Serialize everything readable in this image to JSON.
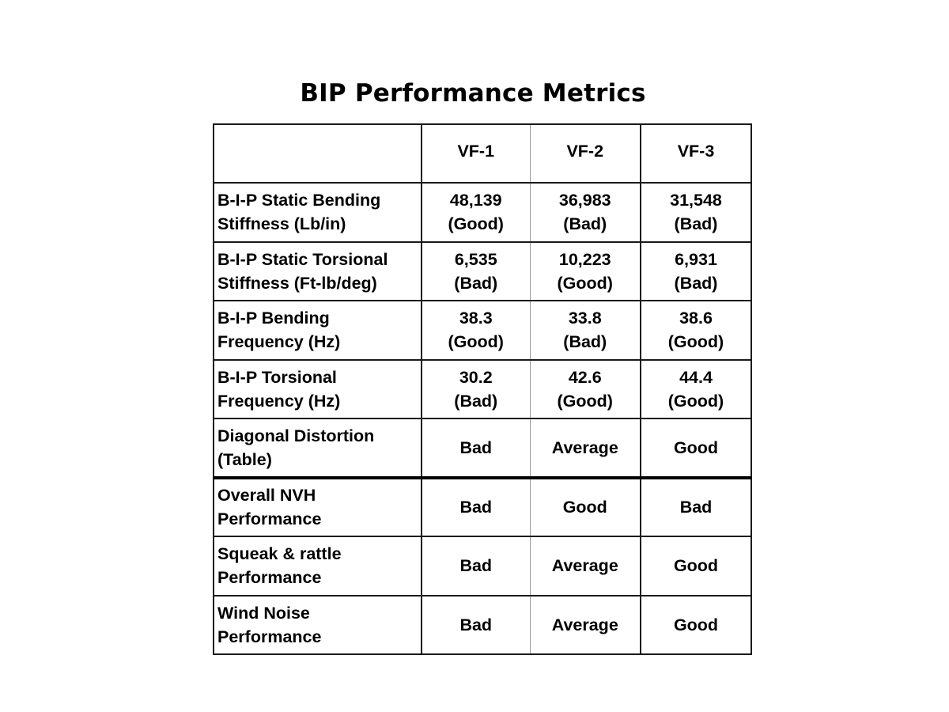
{
  "title": "BIP Performance Metrics",
  "table": {
    "corner": "",
    "columns": [
      "VF-1",
      "VF-2",
      "VF-3"
    ],
    "rows": [
      {
        "label": [
          "B-I-P Static Bending",
          "Stiffness (Lb/in)"
        ],
        "cells": [
          [
            "48,139",
            "(Good)"
          ],
          [
            "36,983",
            "(Bad)"
          ],
          [
            "31,548",
            "(Bad)"
          ]
        ]
      },
      {
        "label": [
          "B-I-P Static Torsional",
          "Stiffness (Ft-lb/deg)"
        ],
        "cells": [
          [
            "6,535",
            "(Bad)"
          ],
          [
            "10,223",
            "(Good)"
          ],
          [
            "6,931",
            "(Bad)"
          ]
        ]
      },
      {
        "label": [
          "B-I-P Bending",
          "Frequency (Hz)"
        ],
        "cells": [
          [
            "38.3",
            "(Good)"
          ],
          [
            "33.8",
            "(Bad)"
          ],
          [
            "38.6",
            "(Good)"
          ]
        ]
      },
      {
        "label": [
          "B-I-P Torsional",
          "Frequency (Hz)"
        ],
        "cells": [
          [
            "30.2",
            "(Bad)"
          ],
          [
            "42.6",
            "(Good)"
          ],
          [
            "44.4",
            "(Good)"
          ]
        ]
      },
      {
        "label": [
          "Diagonal Distortion",
          "(Table)"
        ],
        "cells": [
          [
            "Bad"
          ],
          [
            "Average"
          ],
          [
            "Good"
          ]
        ]
      },
      {
        "label": [
          "Overall NVH",
          "Performance"
        ],
        "cells": [
          [
            "Bad"
          ],
          [
            "Good"
          ],
          [
            "Bad"
          ]
        ]
      },
      {
        "label": [
          "Squeak & rattle",
          "Performance"
        ],
        "cells": [
          [
            "Bad"
          ],
          [
            "Average"
          ],
          [
            "Good"
          ]
        ]
      },
      {
        "label": [
          "Wind Noise",
          "Performance"
        ],
        "cells": [
          [
            "Bad"
          ],
          [
            "Average"
          ],
          [
            "Good"
          ]
        ]
      }
    ]
  }
}
